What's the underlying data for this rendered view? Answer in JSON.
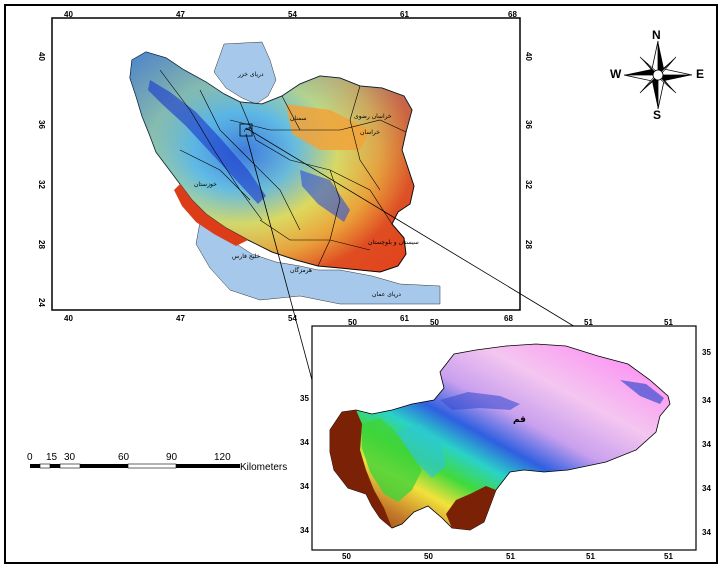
{
  "main_map": {
    "lon_ticks": [
      "40",
      "47",
      "54",
      "61",
      "68"
    ],
    "lat_ticks": [
      "40",
      "36",
      "32",
      "28",
      "24"
    ],
    "labels": {
      "caspian": "دریای خزر",
      "persian_gulf": "خلیج فارس",
      "oman_sea": "دریای عمان",
      "hormozgan": "هرمزگان",
      "semnan": "سمنان",
      "khorasan_razavi": "خراسان رضوی",
      "khorasan": "خراسان",
      "sistan": "سیستان و بلوچستان",
      "khuzestan": "خوزستان",
      "qom": "قم"
    }
  },
  "inset_map": {
    "top_ticks": [
      "50",
      "50",
      "51",
      "51"
    ],
    "bottom_ticks": [
      "50",
      "50",
      "51",
      "51",
      "51"
    ],
    "right_ticks": [
      "35",
      "34",
      "34",
      "34",
      "34"
    ],
    "left_ticks": [
      "35",
      "34",
      "34",
      "34"
    ],
    "city_label": "قم"
  },
  "compass": {
    "n": "N",
    "s": "S",
    "e": "E",
    "w": "W"
  },
  "scale_bar": {
    "ticks": [
      "0",
      "15",
      "30",
      "60",
      "90",
      "120"
    ],
    "unit": "Kilometers"
  },
  "colors": {
    "water": "#a6c8ea",
    "high": "#1e3ccf",
    "mid": "#f6d33a",
    "low": "#e34b1e",
    "border": "#000000"
  }
}
